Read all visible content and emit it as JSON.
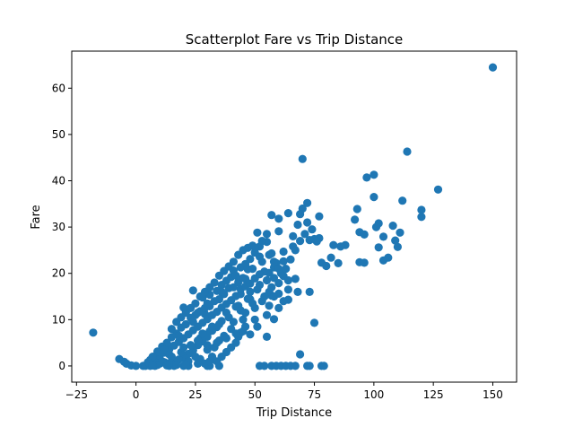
{
  "chart_data": {
    "type": "scatter",
    "title": "Scatterplot Fare vs Trip Distance",
    "xlabel": "Trip Distance",
    "ylabel": "Fare",
    "xlim": [
      -27,
      160
    ],
    "ylim": [
      -3.5,
      68
    ],
    "xticks": [
      -25,
      0,
      25,
      50,
      75,
      100,
      125,
      150
    ],
    "yticks": [
      0,
      10,
      20,
      30,
      40,
      50,
      60
    ],
    "grid": false,
    "legend": "none",
    "series": [
      {
        "color": "#1f77b4",
        "points": [
          [
            150,
            64.5
          ],
          [
            114,
            46.3
          ],
          [
            70,
            44.7
          ],
          [
            97,
            40.7
          ],
          [
            100,
            41.3
          ],
          [
            127,
            38.1
          ],
          [
            112,
            35.7
          ],
          [
            100,
            36.5
          ],
          [
            72,
            35.2
          ],
          [
            93,
            33.9
          ],
          [
            120,
            33.7
          ],
          [
            120,
            32.2
          ],
          [
            70,
            34.0
          ],
          [
            69,
            32.8
          ],
          [
            77,
            32.3
          ],
          [
            64,
            33.0
          ],
          [
            57,
            32.6
          ],
          [
            60,
            31.8
          ],
          [
            92,
            31.6
          ],
          [
            102,
            30.8
          ],
          [
            101,
            30.0
          ],
          [
            108,
            30.3
          ],
          [
            104,
            27.9
          ],
          [
            109,
            27.1
          ],
          [
            110,
            25.7
          ],
          [
            102,
            25.6
          ],
          [
            104,
            22.8
          ],
          [
            94,
            22.4
          ],
          [
            96,
            22.3
          ],
          [
            106,
            23.4
          ],
          [
            111,
            28.8
          ],
          [
            94,
            28.9
          ],
          [
            96,
            28.4
          ],
          [
            88,
            26.1
          ],
          [
            86,
            25.8
          ],
          [
            83,
            26.1
          ],
          [
            82,
            23.4
          ],
          [
            78,
            22.3
          ],
          [
            80,
            21.6
          ],
          [
            85,
            22.2
          ],
          [
            77,
            27.6
          ],
          [
            75,
            27.4
          ],
          [
            73,
            27.2
          ],
          [
            76,
            26.9
          ],
          [
            60,
            29.1
          ],
          [
            51,
            28.8
          ],
          [
            55,
            26.8
          ],
          [
            52,
            25.8
          ],
          [
            62,
            24.7
          ],
          [
            66,
            25.8
          ],
          [
            57,
            24.3
          ],
          [
            62,
            22.6
          ],
          [
            59,
            22.2
          ],
          [
            58,
            21.3
          ],
          [
            62,
            19.4
          ],
          [
            64,
            18.5
          ],
          [
            67,
            18.8
          ],
          [
            60,
            17.9
          ],
          [
            64,
            16.5
          ],
          [
            68,
            16.0
          ],
          [
            64,
            14.3
          ],
          [
            60,
            15.6
          ],
          [
            73,
            16.0
          ],
          [
            57,
            15.2
          ],
          [
            75,
            9.3
          ],
          [
            58,
            10.1
          ],
          [
            55,
            11.0
          ],
          [
            51,
            8.5
          ],
          [
            55,
            6.3
          ],
          [
            48,
            6.8
          ],
          [
            44,
            7.2
          ],
          [
            43,
            6.3
          ],
          [
            69,
            2.5
          ],
          [
            -18,
            7.2
          ],
          [
            -7,
            1.5
          ],
          [
            -5,
            0.9
          ],
          [
            -4,
            0.5
          ],
          [
            -2,
            0.1
          ],
          [
            0,
            0.0
          ],
          [
            3,
            0.0
          ],
          [
            4,
            0.0
          ],
          [
            6,
            0.0
          ],
          [
            8,
            0.0
          ],
          [
            14,
            0.0
          ],
          [
            16,
            0.0
          ],
          [
            20,
            0.0
          ],
          [
            22,
            0.0
          ],
          [
            30,
            0.0
          ],
          [
            31,
            0.0
          ],
          [
            35,
            0.0
          ],
          [
            52,
            0.0
          ],
          [
            54,
            0.0
          ],
          [
            57,
            0.0
          ],
          [
            59,
            0.0
          ],
          [
            61,
            0.0
          ],
          [
            63,
            0.0
          ],
          [
            65,
            0.0
          ],
          [
            67,
            0.0
          ],
          [
            72,
            0.0
          ],
          [
            73,
            0.0
          ],
          [
            78,
            0.0
          ],
          [
            79,
            0.0
          ],
          [
            24,
            16.3
          ],
          [
            26,
            11.5
          ],
          [
            20,
            12.6
          ],
          [
            29,
            11.2
          ],
          [
            28,
            14.8
          ],
          [
            31,
            15.4
          ],
          [
            34,
            16.2
          ],
          [
            36,
            17.5
          ],
          [
            38,
            18.4
          ],
          [
            40,
            19.2
          ],
          [
            41,
            20.6
          ],
          [
            44,
            21.3
          ],
          [
            46,
            22.0
          ],
          [
            48,
            23.1
          ],
          [
            50,
            24.5
          ],
          [
            52,
            23.6
          ],
          [
            54,
            20.4
          ],
          [
            46,
            18.8
          ],
          [
            44,
            15.5
          ],
          [
            48,
            14.4
          ],
          [
            42,
            12.8
          ],
          [
            38,
            11.5
          ],
          [
            36,
            9.7
          ],
          [
            34,
            8.4
          ],
          [
            32,
            7.6
          ],
          [
            30,
            6.3
          ],
          [
            28,
            5.3
          ],
          [
            26,
            4.5
          ],
          [
            24,
            3.4
          ],
          [
            22,
            2.6
          ],
          [
            20,
            1.7
          ],
          [
            18,
            1.4
          ],
          [
            16,
            0.9
          ],
          [
            14,
            0.6
          ],
          [
            12,
            0.8
          ],
          [
            10,
            0.5
          ],
          [
            8,
            1.1
          ],
          [
            6,
            1.3
          ],
          [
            10,
            2.2
          ],
          [
            12,
            2.9
          ],
          [
            14,
            3.6
          ],
          [
            16,
            4.4
          ],
          [
            18,
            5.2
          ],
          [
            20,
            6.0
          ],
          [
            22,
            6.8
          ],
          [
            24,
            7.7
          ],
          [
            26,
            8.5
          ],
          [
            28,
            9.3
          ],
          [
            30,
            10.1
          ],
          [
            32,
            11.0
          ],
          [
            34,
            11.7
          ],
          [
            36,
            12.6
          ],
          [
            38,
            13.4
          ],
          [
            40,
            14.2
          ],
          [
            42,
            15.1
          ],
          [
            44,
            16.6
          ],
          [
            46,
            17.2
          ],
          [
            48,
            17.8
          ],
          [
            50,
            18.9
          ],
          [
            52,
            19.8
          ],
          [
            56,
            20.1
          ],
          [
            47,
            20.9
          ],
          [
            43,
            18.1
          ],
          [
            39,
            16.8
          ],
          [
            35,
            14.4
          ],
          [
            31,
            12.9
          ],
          [
            27,
            11.8
          ],
          [
            23,
            10.4
          ],
          [
            19,
            8.3
          ],
          [
            15,
            6.2
          ],
          [
            11,
            4.2
          ],
          [
            9,
            3.1
          ],
          [
            7,
            2.0
          ],
          [
            5,
            0.8
          ],
          [
            13,
            5.0
          ],
          [
            17,
            7.0
          ],
          [
            21,
            9.0
          ],
          [
            25,
            11.0
          ],
          [
            29,
            12.5
          ],
          [
            33,
            14.0
          ],
          [
            37,
            15.5
          ],
          [
            41,
            17.0
          ],
          [
            45,
            19.0
          ],
          [
            49,
            21.0
          ],
          [
            53,
            22.5
          ],
          [
            55,
            18.5
          ],
          [
            51,
            16.5
          ],
          [
            47,
            14.5
          ],
          [
            43,
            13.0
          ],
          [
            39,
            10.5
          ],
          [
            35,
            9.0
          ],
          [
            31,
            7.5
          ],
          [
            27,
            6.0
          ],
          [
            23,
            4.5
          ],
          [
            19,
            3.0
          ],
          [
            15,
            2.0
          ],
          [
            11,
            1.0
          ],
          [
            25,
            2.0
          ],
          [
            30,
            3.5
          ],
          [
            35,
            5.5
          ],
          [
            40,
            8.0
          ],
          [
            45,
            10.0
          ],
          [
            50,
            12.5
          ],
          [
            53,
            14.0
          ],
          [
            56,
            16.0
          ],
          [
            58,
            19.0
          ],
          [
            33,
            4.0
          ],
          [
            37,
            6.5
          ],
          [
            41,
            9.5
          ],
          [
            46,
            11.5
          ],
          [
            49,
            13.5
          ],
          [
            22,
            1.0
          ],
          [
            27,
            1.5
          ],
          [
            32,
            2.0
          ],
          [
            29,
            0.5
          ],
          [
            34,
            1.0
          ],
          [
            38,
            3.0
          ],
          [
            42,
            5.0
          ],
          [
            45,
            7.5
          ],
          [
            40,
            4.0
          ],
          [
            36,
            2.0
          ],
          [
            31,
            1.0
          ],
          [
            26,
            0.5
          ],
          [
            21,
            0.3
          ],
          [
            17,
            0.2
          ],
          [
            13,
            0.1
          ],
          [
            9,
            0.2
          ],
          [
            7,
            0.1
          ],
          [
            15,
            8.0
          ],
          [
            17,
            9.5
          ],
          [
            19,
            10.5
          ],
          [
            21,
            11.5
          ],
          [
            23,
            12.5
          ],
          [
            25,
            13.5
          ],
          [
            27,
            15.0
          ],
          [
            29,
            16.0
          ],
          [
            31,
            17.0
          ],
          [
            33,
            18.0
          ],
          [
            35,
            19.5
          ],
          [
            37,
            20.5
          ],
          [
            39,
            21.5
          ],
          [
            41,
            22.5
          ],
          [
            43,
            24.0
          ],
          [
            45,
            25.0
          ],
          [
            47,
            25.5
          ],
          [
            49,
            26.0
          ],
          [
            42,
            19.5
          ],
          [
            36,
            16.0
          ],
          [
            30,
            13.5
          ],
          [
            24,
            9.5
          ],
          [
            18,
            6.5
          ],
          [
            12,
            3.5
          ],
          [
            28,
            7.0
          ],
          [
            32,
            8.5
          ],
          [
            26,
            5.5
          ],
          [
            20,
            4.0
          ],
          [
            14,
            2.5
          ],
          [
            44,
            12.0
          ],
          [
            48,
            16.0
          ],
          [
            52,
            17.5
          ],
          [
            54,
            15.0
          ],
          [
            56,
            13.0
          ],
          [
            50,
            10.0
          ],
          [
            46,
            8.5
          ],
          [
            42,
            7.0
          ],
          [
            38,
            6.0
          ],
          [
            34,
            5.0
          ],
          [
            30,
            4.5
          ],
          [
            58,
            15.0
          ],
          [
            60,
            12.5
          ],
          [
            62,
            14.0
          ],
          [
            57,
            17.0
          ],
          [
            61,
            20.0
          ],
          [
            63,
            21.0
          ],
          [
            65,
            23.0
          ],
          [
            67,
            25.0
          ],
          [
            69,
            27.0
          ],
          [
            71,
            28.5
          ],
          [
            66,
            28.0
          ],
          [
            68,
            30.5
          ],
          [
            72,
            31.0
          ],
          [
            74,
            29.5
          ],
          [
            55,
            28.5
          ],
          [
            53,
            27.0
          ],
          [
            50,
            25.5
          ],
          [
            56,
            24.0
          ],
          [
            58,
            22.5
          ],
          [
            60,
            21.0
          ]
        ]
      }
    ]
  }
}
